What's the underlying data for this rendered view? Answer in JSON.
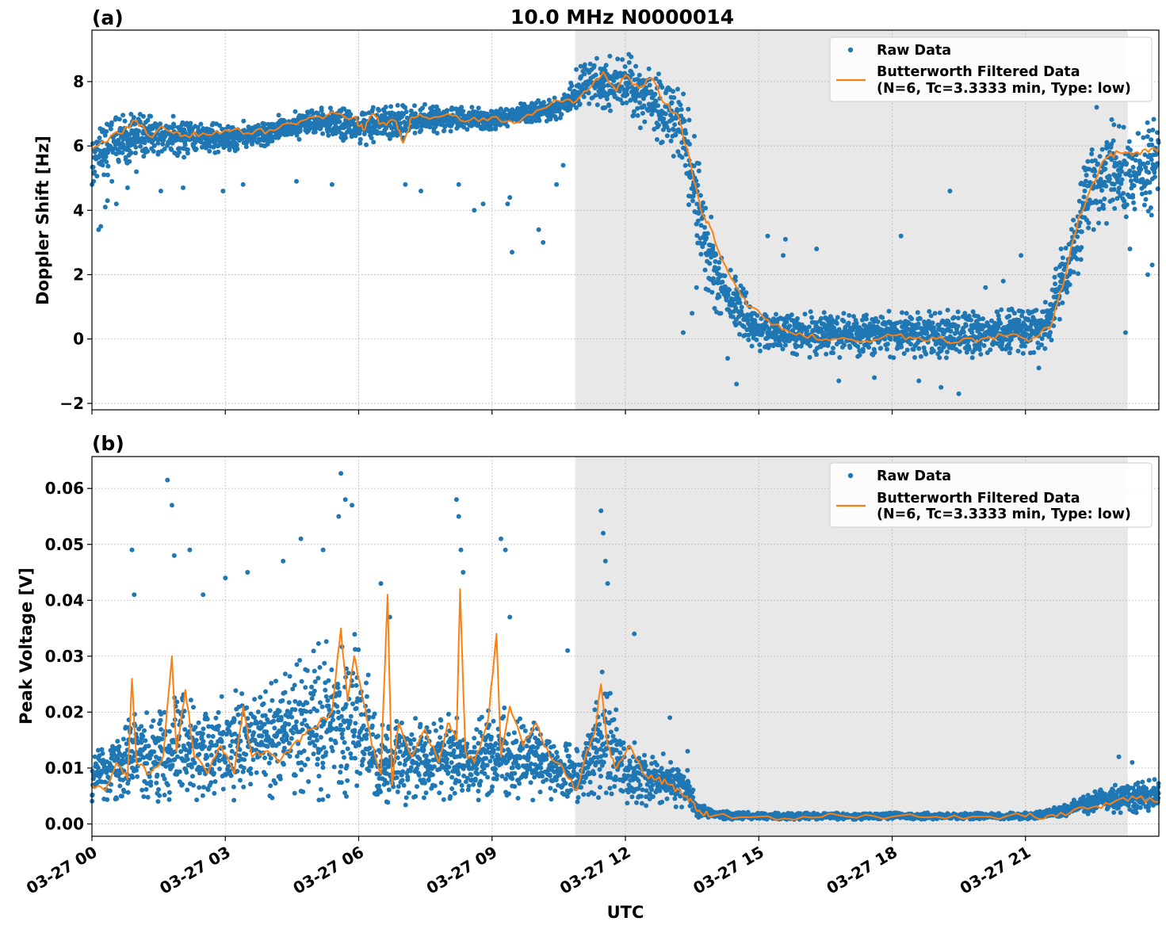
{
  "figure": {
    "title": "10.0 MHz N0000014",
    "xlabel": "UTC"
  },
  "chart_data": [
    {
      "type": "scatter",
      "panel_label": "(a)",
      "title": "10.0 MHz N0000014",
      "ylabel": "Doppler Shift [Hz]",
      "xlabel": "UTC",
      "x_unit": "hours since 03-27 00:00 UTC",
      "xlim": [
        0,
        24
      ],
      "ylim": [
        -2.2,
        9.6
      ],
      "x_tick_values": [
        0,
        3,
        6,
        9,
        12,
        15,
        18,
        21
      ],
      "x_tick_labels": [
        "03-27 00",
        "03-27 03",
        "03-27 06",
        "03-27 09",
        "03-27 12",
        "03-27 15",
        "03-27 18",
        "03-27 21"
      ],
      "y_tick_values": [
        -2,
        0,
        2,
        4,
        6,
        8
      ],
      "y_tick_labels": [
        "−2",
        "0",
        "2",
        "4",
        "6",
        "8"
      ],
      "grid": true,
      "shaded_region_x": [
        10.87,
        23.3
      ],
      "legend_position": "upper right",
      "legend": [
        {
          "kind": "marker",
          "label": "Raw Data",
          "color": "#1f77b4"
        },
        {
          "kind": "line",
          "label": "Butterworth Filtered Data",
          "label2": "(N=6, Tc=3.3333 min, Type: low)",
          "color": "#ff7f0e"
        }
      ],
      "series": [
        {
          "name": "Raw Data",
          "style": "scatter",
          "color": "#1f77b4",
          "band": {
            "x": [
              0,
              0.5,
              1,
              1.5,
              2,
              3,
              4,
              5,
              5.5,
              6,
              6.5,
              7,
              8,
              9,
              10,
              10.5,
              11,
              11.5,
              12,
              12.5,
              13,
              13.3,
              13.6,
              14,
              14.5,
              15,
              16,
              17,
              18,
              19,
              20,
              21,
              21.5,
              22,
              22.5,
              23,
              23.5,
              24
            ],
            "low": [
              4.6,
              5.2,
              5.6,
              5.6,
              5.6,
              5.8,
              6.0,
              6.3,
              6.2,
              6.0,
              6.0,
              6.2,
              6.4,
              6.5,
              6.7,
              6.8,
              7.0,
              7.1,
              6.8,
              6.4,
              5.8,
              5.0,
              2.4,
              0.8,
              0.0,
              -0.4,
              -0.6,
              -0.6,
              -0.6,
              -0.6,
              -0.6,
              -0.5,
              -0.3,
              1.0,
              3.2,
              3.8,
              3.6,
              3.9
            ],
            "high": [
              6.5,
              6.9,
              7.1,
              7.0,
              6.9,
              6.7,
              6.9,
              7.2,
              7.3,
              7.2,
              7.2,
              7.3,
              7.3,
              7.2,
              7.4,
              7.6,
              8.6,
              8.8,
              9.0,
              8.6,
              8.3,
              8.0,
              6.0,
              3.5,
              2.0,
              1.0,
              0.9,
              0.9,
              0.9,
              0.9,
              0.9,
              1.0,
              1.2,
              4.0,
              6.5,
              6.9,
              6.9,
              6.9
            ]
          },
          "outliers_x": [
            0.15,
            0.2,
            0.3,
            0.35,
            0.45,
            0.55,
            0.8,
            1.0,
            1.55,
            2.05,
            2.95,
            3.4,
            4.6,
            5.4,
            7.05,
            7.4,
            8.25,
            8.6,
            8.8,
            9.35,
            9.4,
            9.45,
            10.05,
            10.15,
            10.45,
            10.6,
            13.3,
            13.5,
            13.6,
            14.3,
            14.5,
            15.2,
            15.55,
            15.6,
            16.3,
            16.8,
            17.6,
            18.2,
            18.6,
            19.1,
            19.3,
            19.5,
            20.1,
            20.5,
            20.9,
            21.3,
            21.8,
            22.6,
            23.25,
            23.35,
            23.75,
            23.85
          ],
          "outliers_y": [
            3.4,
            3.5,
            4.1,
            4.3,
            4.9,
            4.2,
            4.7,
            5.2,
            4.6,
            4.7,
            4.6,
            4.8,
            4.9,
            4.8,
            4.8,
            4.6,
            4.8,
            4.0,
            4.2,
            4.2,
            4.4,
            2.7,
            3.4,
            3.0,
            4.8,
            5.4,
            0.2,
            0.8,
            1.6,
            -0.6,
            -1.4,
            3.2,
            2.6,
            3.1,
            2.8,
            -1.3,
            -1.2,
            3.2,
            -1.3,
            -1.5,
            4.6,
            -1.7,
            1.6,
            1.8,
            2.6,
            -0.9,
            2.8,
            7.2,
            0.2,
            2.8,
            2.0,
            2.3
          ]
        },
        {
          "name": "Butterworth Filtered Data",
          "style": "line",
          "color": "#ff7f0e",
          "x": [
            0,
            0.3,
            0.6,
            1.0,
            1.3,
            1.6,
            2.0,
            2.5,
            3.0,
            3.5,
            4.0,
            4.5,
            5.0,
            5.5,
            5.9,
            6.1,
            6.3,
            6.5,
            6.8,
            7.0,
            7.2,
            7.5,
            8.0,
            8.5,
            9.0,
            9.5,
            10.0,
            10.5,
            10.9,
            11.2,
            11.5,
            11.8,
            12.0,
            12.3,
            12.6,
            12.9,
            13.2,
            13.5,
            13.7,
            13.9,
            14.2,
            14.5,
            14.8,
            15.2,
            15.6,
            16.0,
            16.5,
            17.0,
            17.5,
            18.0,
            18.5,
            19.0,
            19.5,
            20.0,
            20.5,
            21.0,
            21.3,
            21.6,
            21.9,
            22.2,
            22.5,
            22.8,
            23.1,
            23.4,
            23.7,
            24.0
          ],
          "y": [
            5.9,
            6.1,
            6.4,
            6.8,
            6.3,
            6.6,
            6.3,
            6.4,
            6.5,
            6.4,
            6.5,
            6.7,
            6.9,
            7.0,
            6.9,
            6.5,
            7.0,
            6.7,
            6.8,
            6.1,
            6.9,
            6.9,
            7.0,
            6.8,
            6.9,
            6.7,
            7.1,
            7.4,
            7.4,
            7.8,
            8.3,
            7.7,
            8.2,
            7.8,
            8.1,
            7.3,
            6.9,
            5.2,
            4.0,
            3.5,
            2.4,
            1.6,
            1.0,
            0.6,
            0.3,
            0.1,
            0.0,
            0.0,
            -0.1,
            0.1,
            0.0,
            0.0,
            -0.1,
            0.0,
            0.1,
            0.0,
            0.1,
            0.5,
            2.0,
            3.8,
            4.8,
            5.6,
            5.8,
            5.7,
            5.9,
            5.8
          ]
        }
      ]
    },
    {
      "type": "scatter",
      "panel_label": "(b)",
      "title": "",
      "ylabel": "Peak Voltage [V]",
      "xlabel": "UTC",
      "x_unit": "hours since 03-27 00:00 UTC",
      "xlim": [
        0,
        24
      ],
      "ylim": [
        -0.0022,
        0.0657
      ],
      "x_tick_values": [
        0,
        3,
        6,
        9,
        12,
        15,
        18,
        21
      ],
      "x_tick_labels": [
        "03-27 00",
        "03-27 03",
        "03-27 06",
        "03-27 09",
        "03-27 12",
        "03-27 15",
        "03-27 18",
        "03-27 21"
      ],
      "y_tick_values": [
        0.0,
        0.01,
        0.02,
        0.03,
        0.04,
        0.05,
        0.06
      ],
      "y_tick_labels": [
        "0.00",
        "0.01",
        "0.02",
        "0.03",
        "0.04",
        "0.05",
        "0.06"
      ],
      "grid": true,
      "shaded_region_x": [
        10.87,
        23.3
      ],
      "legend_position": "upper right",
      "legend": [
        {
          "kind": "marker",
          "label": "Raw Data",
          "color": "#1f77b4"
        },
        {
          "kind": "line",
          "label": "Butterworth Filtered Data",
          "label2": "(N=6, Tc=3.3333 min, Type: low)",
          "color": "#ff7f0e"
        }
      ],
      "series": [
        {
          "name": "Raw Data",
          "style": "scatter",
          "color": "#1f77b4",
          "band": {
            "x": [
              0,
              0.5,
              1,
              1.5,
              2,
              2.5,
              3,
              3.5,
              4,
              4.5,
              5,
              5.5,
              6,
              6.5,
              7,
              7.5,
              8,
              8.5,
              9,
              9.5,
              10,
              10.5,
              11,
              11.5,
              12,
              12.5,
              13,
              13.4,
              13.6,
              14,
              15,
              16,
              17,
              18,
              19,
              20,
              21,
              21.5,
              22,
              22.5,
              23,
              23.5,
              24
            ],
            "low": [
              0.003,
              0.004,
              0.004,
              0.004,
              0.004,
              0.004,
              0.004,
              0.004,
              0.004,
              0.004,
              0.004,
              0.004,
              0.004,
              0.003,
              0.003,
              0.004,
              0.004,
              0.004,
              0.004,
              0.004,
              0.004,
              0.004,
              0.003,
              0.004,
              0.003,
              0.003,
              0.003,
              0.003,
              0.001,
              0.0008,
              0.0008,
              0.0008,
              0.0008,
              0.0008,
              0.0008,
              0.0008,
              0.0008,
              0.001,
              0.0015,
              0.0018,
              0.002,
              0.002,
              0.002
            ],
            "high": [
              0.012,
              0.018,
              0.02,
              0.02,
              0.024,
              0.022,
              0.023,
              0.026,
              0.026,
              0.03,
              0.032,
              0.034,
              0.034,
              0.018,
              0.02,
              0.018,
              0.02,
              0.018,
              0.022,
              0.02,
              0.018,
              0.015,
              0.014,
              0.028,
              0.016,
              0.014,
              0.012,
              0.01,
              0.004,
              0.0025,
              0.002,
              0.002,
              0.002,
              0.002,
              0.002,
              0.002,
              0.002,
              0.0025,
              0.004,
              0.006,
              0.007,
              0.008,
              0.008
            ]
          },
          "outliers_x": [
            0.9,
            0.95,
            1.7,
            1.8,
            1.85,
            2.2,
            2.5,
            3.0,
            3.5,
            4.3,
            4.7,
            5.2,
            5.55,
            5.6,
            5.7,
            5.85,
            6.5,
            6.7,
            8.2,
            8.25,
            8.3,
            8.35,
            9.2,
            9.3,
            9.4,
            10.7,
            11.45,
            11.5,
            11.55,
            11.6,
            12.2,
            13.0,
            13.4,
            23.1,
            23.4
          ],
          "outliers_y": [
            0.049,
            0.041,
            0.0615,
            0.057,
            0.048,
            0.049,
            0.041,
            0.044,
            0.045,
            0.047,
            0.051,
            0.049,
            0.055,
            0.0627,
            0.058,
            0.057,
            0.043,
            0.037,
            0.058,
            0.055,
            0.049,
            0.045,
            0.051,
            0.049,
            0.037,
            0.031,
            0.056,
            0.052,
            0.047,
            0.043,
            0.034,
            0.019,
            0.013,
            0.012,
            0.011
          ]
        },
        {
          "name": "Butterworth Filtered Data",
          "style": "line",
          "color": "#ff7f0e",
          "x": [
            0,
            0.3,
            0.55,
            0.8,
            0.9,
            1.0,
            1.3,
            1.6,
            1.8,
            1.9,
            2.1,
            2.3,
            2.6,
            2.9,
            3.2,
            3.4,
            3.6,
            3.9,
            4.2,
            4.5,
            4.8,
            5.1,
            5.4,
            5.6,
            5.75,
            5.9,
            6.1,
            6.3,
            6.5,
            6.65,
            6.75,
            6.9,
            7.2,
            7.5,
            7.8,
            8.0,
            8.2,
            8.28,
            8.4,
            8.6,
            8.9,
            9.1,
            9.2,
            9.4,
            9.7,
            10.0,
            10.3,
            10.6,
            10.9,
            11.1,
            11.3,
            11.45,
            11.6,
            11.8,
            12.1,
            12.4,
            12.7,
            13.0,
            13.3,
            13.5,
            13.7,
            14.0,
            15.0,
            16.0,
            17.0,
            18.0,
            19.0,
            20.0,
            21.0,
            21.5,
            22.0,
            22.5,
            23.0,
            23.5,
            24.0
          ],
          "y": [
            0.007,
            0.006,
            0.011,
            0.008,
            0.026,
            0.011,
            0.009,
            0.012,
            0.03,
            0.013,
            0.024,
            0.012,
            0.009,
            0.014,
            0.009,
            0.021,
            0.012,
            0.013,
            0.011,
            0.014,
            0.016,
            0.018,
            0.02,
            0.035,
            0.022,
            0.03,
            0.022,
            0.014,
            0.009,
            0.041,
            0.007,
            0.018,
            0.012,
            0.017,
            0.011,
            0.018,
            0.015,
            0.042,
            0.013,
            0.011,
            0.018,
            0.034,
            0.012,
            0.021,
            0.014,
            0.018,
            0.012,
            0.01,
            0.006,
            0.012,
            0.016,
            0.025,
            0.014,
            0.01,
            0.014,
            0.009,
            0.008,
            0.007,
            0.005,
            0.004,
            0.002,
            0.0015,
            0.0013,
            0.0013,
            0.0013,
            0.0013,
            0.0013,
            0.0013,
            0.0013,
            0.0015,
            0.002,
            0.003,
            0.004,
            0.0045,
            0.004
          ]
        }
      ]
    }
  ]
}
